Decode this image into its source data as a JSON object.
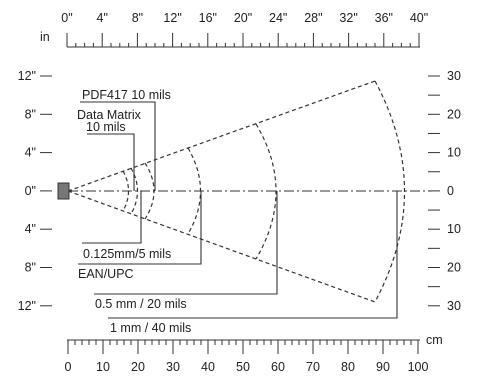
{
  "top_ruler": {
    "unit": "in",
    "labels": [
      "0\"",
      "4\"",
      "8\"",
      "12\"",
      "16\"",
      "20\"",
      "24\"",
      "28\"",
      "32\"",
      "36\"",
      "40\""
    ]
  },
  "bottom_ruler": {
    "unit": "cm",
    "labels": [
      "0",
      "10",
      "20",
      "30",
      "40",
      "50",
      "60",
      "70",
      "80",
      "90",
      "100"
    ]
  },
  "left_axis": {
    "labels": [
      "12\"",
      "8\"",
      "4\"",
      "0\"",
      "4\"",
      "8\"",
      "12\""
    ]
  },
  "right_axis": {
    "labels": [
      "30",
      "20",
      "10",
      "0",
      "10",
      "20",
      "30"
    ]
  },
  "ranges": {
    "pdf417": "PDF417 10 mils",
    "datamatrix_line1": "Data Matrix",
    "datamatrix_line2": "10 mils",
    "small": "0.125mm/5 mils",
    "ean": "EAN/UPC",
    "half": "0.5 mm / 20 mils",
    "one": "1 mm / 40 mils"
  }
}
